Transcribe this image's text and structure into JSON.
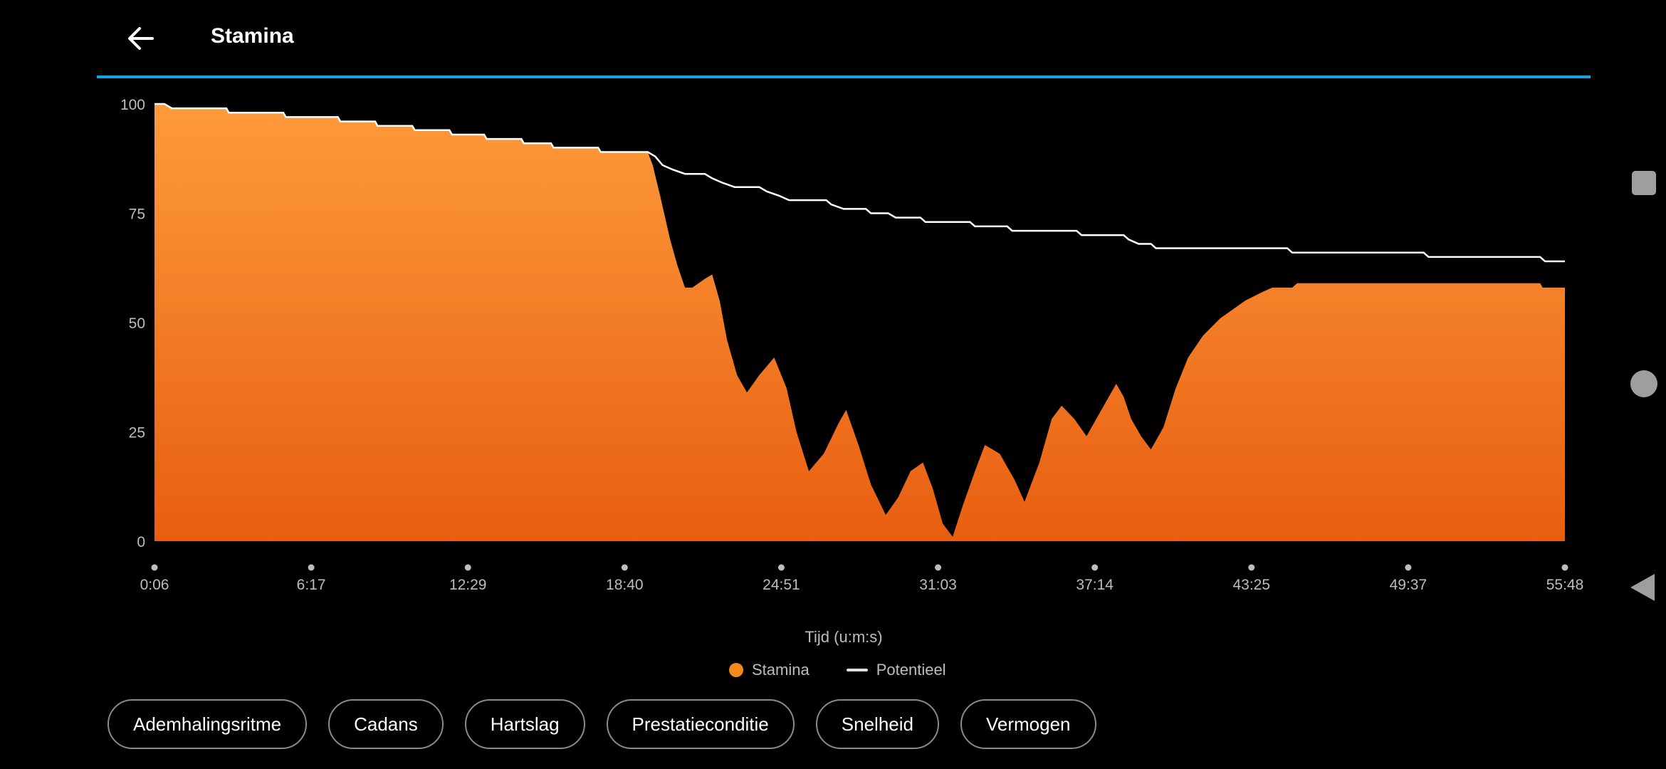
{
  "header": {
    "title": "Stamina",
    "back_icon": "arrow-left-icon"
  },
  "colors": {
    "accent": "#1ba1e2",
    "stamina_top": "#fd9b3c",
    "stamina_bottom": "#e85e10",
    "potential": "#ffffff"
  },
  "chart_data": {
    "type": "area",
    "xlabel": "Tijd (u:m:s)",
    "ylabel": "",
    "ylim": [
      0,
      100
    ],
    "y_ticks": [
      "100",
      "75",
      "50",
      "25",
      "0"
    ],
    "x_ticks": [
      "0:06",
      "6:17",
      "12:29",
      "18:40",
      "24:51",
      "31:03",
      "37:14",
      "43:25",
      "49:37",
      "55:48"
    ],
    "legend_position": "bottom-center",
    "grid": false,
    "x_unit": "minutes",
    "series": [
      {
        "name": "Stamina",
        "kind": "area",
        "points": [
          [
            0.1,
            100
          ],
          [
            0.5,
            100
          ],
          [
            0.8,
            99
          ],
          [
            3,
            99
          ],
          [
            3.1,
            98
          ],
          [
            5.3,
            98
          ],
          [
            5.4,
            97
          ],
          [
            7.5,
            97
          ],
          [
            7.6,
            96
          ],
          [
            9,
            96
          ],
          [
            9.1,
            95
          ],
          [
            10.5,
            95
          ],
          [
            10.6,
            94
          ],
          [
            12,
            94
          ],
          [
            12.1,
            93
          ],
          [
            13.4,
            93
          ],
          [
            13.5,
            92
          ],
          [
            14.9,
            92
          ],
          [
            15,
            91
          ],
          [
            16.1,
            91
          ],
          [
            16.2,
            90
          ],
          [
            18,
            90
          ],
          [
            18.1,
            89
          ],
          [
            20,
            89
          ],
          [
            20.2,
            86
          ],
          [
            20.5,
            79
          ],
          [
            20.9,
            69
          ],
          [
            21.2,
            63
          ],
          [
            21.5,
            58
          ],
          [
            21.8,
            58
          ],
          [
            22.3,
            60
          ],
          [
            22.6,
            61
          ],
          [
            22.9,
            55
          ],
          [
            23.2,
            46
          ],
          [
            23.6,
            38
          ],
          [
            24,
            34
          ],
          [
            24.5,
            38
          ],
          [
            25.1,
            42
          ],
          [
            25.6,
            35
          ],
          [
            26,
            25
          ],
          [
            26.5,
            16
          ],
          [
            27.1,
            20
          ],
          [
            27.7,
            27
          ],
          [
            28,
            30
          ],
          [
            28.5,
            22
          ],
          [
            29,
            13
          ],
          [
            29.6,
            6
          ],
          [
            30.1,
            10
          ],
          [
            30.6,
            16
          ],
          [
            31.1,
            18
          ],
          [
            31.5,
            12
          ],
          [
            31.9,
            4
          ],
          [
            32.3,
            1
          ],
          [
            32.7,
            8
          ],
          [
            33.2,
            16
          ],
          [
            33.6,
            22
          ],
          [
            34.2,
            20
          ],
          [
            34.8,
            14
          ],
          [
            35.2,
            9
          ],
          [
            35.8,
            18
          ],
          [
            36.3,
            28
          ],
          [
            36.7,
            31
          ],
          [
            37.2,
            28
          ],
          [
            37.7,
            24
          ],
          [
            38.2,
            29
          ],
          [
            38.9,
            36
          ],
          [
            39.2,
            33
          ],
          [
            39.5,
            28
          ],
          [
            39.9,
            24
          ],
          [
            40.3,
            21
          ],
          [
            40.8,
            26
          ],
          [
            41.3,
            35
          ],
          [
            41.8,
            42
          ],
          [
            42.4,
            47
          ],
          [
            43.1,
            51
          ],
          [
            43.6,
            53
          ],
          [
            44.1,
            55
          ],
          [
            44.8,
            57
          ],
          [
            45.2,
            58
          ],
          [
            46,
            58
          ],
          [
            46.2,
            59
          ],
          [
            56,
            59
          ],
          [
            56.1,
            58
          ],
          [
            57,
            58
          ]
        ]
      },
      {
        "name": "Potentieel",
        "kind": "line",
        "points": [
          [
            0.1,
            100
          ],
          [
            0.5,
            100
          ],
          [
            0.8,
            99
          ],
          [
            3,
            99
          ],
          [
            3.1,
            98
          ],
          [
            5.3,
            98
          ],
          [
            5.4,
            97
          ],
          [
            7.5,
            97
          ],
          [
            7.6,
            96
          ],
          [
            9,
            96
          ],
          [
            9.1,
            95
          ],
          [
            10.5,
            95
          ],
          [
            10.6,
            94
          ],
          [
            12,
            94
          ],
          [
            12.1,
            93
          ],
          [
            13.4,
            93
          ],
          [
            13.5,
            92
          ],
          [
            14.9,
            92
          ],
          [
            15,
            91
          ],
          [
            16.1,
            91
          ],
          [
            16.2,
            90
          ],
          [
            18,
            90
          ],
          [
            18.1,
            89
          ],
          [
            20,
            89
          ],
          [
            20.3,
            88
          ],
          [
            20.6,
            86
          ],
          [
            21,
            85
          ],
          [
            21.5,
            84
          ],
          [
            22.3,
            84
          ],
          [
            22.6,
            83
          ],
          [
            23,
            82
          ],
          [
            23.5,
            81
          ],
          [
            24.5,
            81
          ],
          [
            24.8,
            80
          ],
          [
            25.3,
            79
          ],
          [
            25.7,
            78
          ],
          [
            27.2,
            78
          ],
          [
            27.4,
            77
          ],
          [
            27.9,
            76
          ],
          [
            28.8,
            76
          ],
          [
            29,
            75
          ],
          [
            29.7,
            75
          ],
          [
            30,
            74
          ],
          [
            31,
            74
          ],
          [
            31.2,
            73
          ],
          [
            33,
            73
          ],
          [
            33.2,
            72
          ],
          [
            34.5,
            72
          ],
          [
            34.7,
            71
          ],
          [
            37.3,
            71
          ],
          [
            37.5,
            70
          ],
          [
            39.2,
            70
          ],
          [
            39.4,
            69
          ],
          [
            39.8,
            68
          ],
          [
            40.3,
            68
          ],
          [
            40.5,
            67
          ],
          [
            45.8,
            67
          ],
          [
            46,
            66
          ],
          [
            51.3,
            66
          ],
          [
            51.5,
            65
          ],
          [
            56,
            65
          ],
          [
            56.2,
            64
          ],
          [
            57,
            64
          ]
        ]
      }
    ]
  },
  "legend": {
    "stamina": "Stamina",
    "potential": "Potentieel"
  },
  "metric_buttons": [
    "Ademhalingsritme",
    "Cadans",
    "Hartslag",
    "Prestatieconditie",
    "Snelheid",
    "Vermogen"
  ],
  "navbar": {
    "recents_icon": "square-icon",
    "home_icon": "circle-icon",
    "back_icon": "triangle-back-icon"
  }
}
